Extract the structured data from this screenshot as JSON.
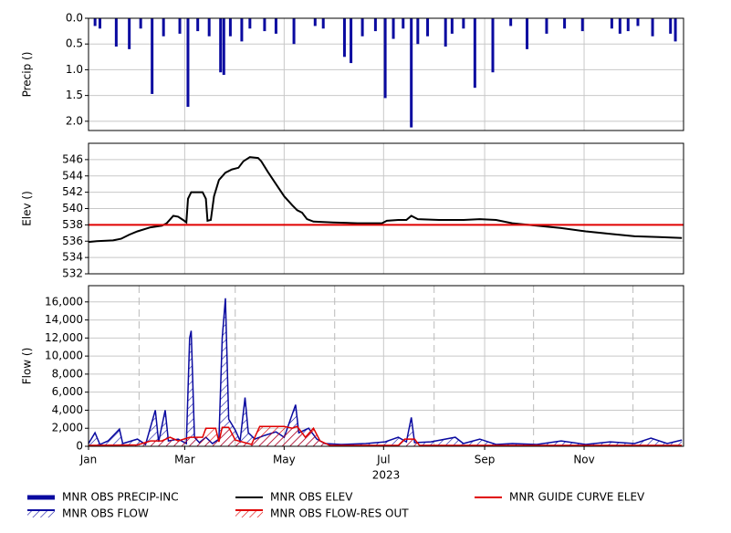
{
  "chart_data": [
    {
      "type": "bar",
      "ylabel": "Precip ()",
      "xlim": [
        0,
        365
      ],
      "ylim": [
        0,
        2.18
      ],
      "y_inverted": true,
      "grid": true,
      "yticks": [
        {
          "value": 0,
          "label": "0.0"
        },
        {
          "value": 0.5,
          "label": "0.5"
        },
        {
          "value": 1,
          "label": "1.0"
        },
        {
          "value": 1.5,
          "label": "1.5"
        },
        {
          "value": 2,
          "label": "2.0"
        }
      ],
      "series": [
        {
          "name": "MNR OBS PRECIP-INC",
          "color": "#0a0aa0",
          "x": [
            4,
            7,
            17,
            25,
            32,
            39,
            46,
            56,
            61,
            67,
            74,
            81,
            83,
            87,
            94,
            99,
            108,
            115,
            126,
            139,
            144,
            157,
            161,
            168,
            176,
            182,
            187,
            193,
            198,
            202,
            208,
            219,
            223,
            230,
            237,
            248,
            259,
            269,
            281,
            292,
            303,
            321,
            326,
            331,
            337,
            346,
            357,
            360
          ],
          "values": [
            0.15,
            0.2,
            0.55,
            0.6,
            0.2,
            1.47,
            0.35,
            0.3,
            1.72,
            0.25,
            0.35,
            1.05,
            1.1,
            0.35,
            0.45,
            0.2,
            0.25,
            0.3,
            0.5,
            0.15,
            0.2,
            0.75,
            0.87,
            0.35,
            0.25,
            1.55,
            0.4,
            0.2,
            2.12,
            0.5,
            0.35,
            0.55,
            0.3,
            0.2,
            1.35,
            1.05,
            0.15,
            0.6,
            0.3,
            0.2,
            0.25,
            0.2,
            0.3,
            0.25,
            0.15,
            0.35,
            0.3,
            0.45
          ]
        }
      ]
    },
    {
      "type": "line",
      "ylabel": "Elev ()",
      "xlim": [
        0,
        365
      ],
      "ylim": [
        532,
        548
      ],
      "grid": true,
      "yticks": [
        532,
        534,
        536,
        538,
        540,
        542,
        544,
        546
      ],
      "series": [
        {
          "name": "MNR OBS ELEV",
          "color": "#000000",
          "x": [
            0,
            5,
            15,
            20,
            25,
            30,
            38,
            45,
            48,
            52,
            55,
            58,
            60,
            61,
            63,
            70,
            72,
            73,
            75,
            77,
            80,
            84,
            88,
            92,
            95,
            99,
            104,
            106,
            110,
            115,
            120,
            125,
            128,
            131,
            134,
            138,
            150,
            165,
            180,
            183,
            190,
            195,
            198,
            202,
            215,
            230,
            240,
            250,
            260,
            275,
            290,
            305,
            320,
            335,
            350,
            364
          ],
          "values": [
            535.9,
            536.0,
            536.1,
            536.3,
            536.8,
            537.2,
            537.7,
            537.9,
            538.2,
            539.1,
            539.0,
            538.6,
            538.3,
            541.2,
            542.0,
            542.0,
            541.2,
            538.5,
            538.6,
            541.5,
            543.5,
            544.4,
            544.8,
            545.0,
            545.8,
            546.3,
            546.2,
            545.8,
            544.5,
            543.0,
            541.5,
            540.4,
            539.8,
            539.5,
            538.7,
            538.4,
            538.3,
            538.2,
            538.2,
            538.5,
            538.6,
            538.6,
            539.1,
            538.7,
            538.6,
            538.6,
            538.7,
            538.6,
            538.2,
            537.9,
            537.6,
            537.2,
            536.9,
            536.6,
            536.5,
            536.4
          ]
        },
        {
          "name": "MNR GUIDE CURVE ELEV",
          "color": "#e00000",
          "x": [
            0,
            365
          ],
          "values": [
            538,
            538
          ]
        }
      ]
    },
    {
      "type": "area",
      "ylabel": "Flow ()",
      "xlabel": "2023",
      "xlim": [
        0,
        365
      ],
      "ylim": [
        0,
        17800
      ],
      "grid": true,
      "yticks": [
        0,
        {
          "value": 2000,
          "label": "2,000"
        },
        {
          "value": 4000,
          "label": "4,000"
        },
        {
          "value": 6000,
          "label": "6,000"
        },
        {
          "value": 8000,
          "label": "8,000"
        },
        {
          "value": 10000,
          "label": "10,000"
        },
        {
          "value": 12000,
          "label": "12,000"
        },
        {
          "value": 14000,
          "label": "14,000"
        },
        {
          "value": 16000,
          "label": "16,000"
        }
      ],
      "xticks": [
        {
          "value": 0,
          "label": "Jan"
        },
        {
          "value": 59,
          "label": "Mar"
        },
        {
          "value": 120,
          "label": "May"
        },
        {
          "value": 181,
          "label": "Jul"
        },
        {
          "value": 243,
          "label": "Sep"
        },
        {
          "value": 304,
          "label": "Nov"
        }
      ],
      "x_minor_ticks": [
        31,
        90,
        151,
        212,
        273,
        334
      ],
      "series": [
        {
          "name": "MNR OBS FLOW",
          "color": "#0a0aa0",
          "x": [
            0,
            4,
            7,
            12,
            19,
            21,
            30,
            35,
            41,
            43,
            47,
            49,
            55,
            60,
            62,
            63,
            65,
            68,
            72,
            76,
            80,
            82,
            84,
            86,
            90,
            93,
            96,
            98,
            102,
            108,
            115,
            120,
            127,
            129,
            135,
            140,
            145,
            155,
            170,
            182,
            190,
            195,
            198,
            200,
            210,
            225,
            230,
            240,
            250,
            260,
            275,
            290,
            305,
            320,
            335,
            345,
            355,
            364
          ],
          "values": [
            300,
            1500,
            200,
            600,
            1900,
            300,
            800,
            200,
            4000,
            500,
            4000,
            600,
            800,
            300,
            12000,
            12800,
            1000,
            400,
            1000,
            300,
            800,
            12000,
            16400,
            3000,
            1800,
            600,
            5400,
            1500,
            800,
            1200,
            1600,
            1000,
            4600,
            1500,
            2000,
            800,
            300,
            200,
            300,
            500,
            1000,
            500,
            3200,
            400,
            500,
            1000,
            300,
            800,
            200,
            300,
            200,
            600,
            200,
            500,
            300,
            900,
            300,
            700
          ]
        },
        {
          "name": "MNR OBS FLOW-RES OUT",
          "color": "#e00000",
          "x": [
            0,
            30,
            38,
            45,
            50,
            55,
            62,
            70,
            72,
            78,
            80,
            82,
            86,
            90,
            100,
            105,
            120,
            125,
            128,
            133,
            138,
            142,
            148,
            190,
            194,
            200,
            203,
            364
          ],
          "values": [
            100,
            150,
            600,
            600,
            1000,
            600,
            1000,
            1000,
            2000,
            2000,
            500,
            2100,
            2100,
            700,
            200,
            2200,
            2200,
            2000,
            2200,
            1000,
            2000,
            600,
            100,
            100,
            800,
            800,
            100,
            100
          ]
        }
      ]
    }
  ]
}
